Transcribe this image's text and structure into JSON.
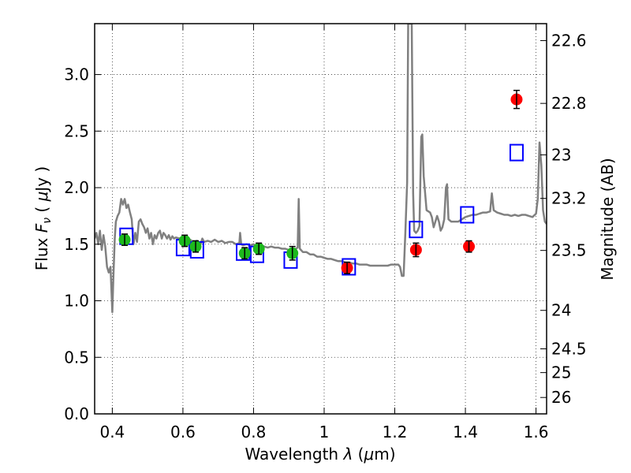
{
  "chart_data": {
    "type": "scatter",
    "xlabel_prefix": "Wavelength  ",
    "xlabel_symbol": "λ",
    "xlabel_unit_open": " (",
    "xlabel_unit_mu": "μ",
    "xlabel_unit_close": "m)",
    "ylabel_prefix": "Flux  ",
    "ylabel_symbol": "F",
    "ylabel_sub": "ν",
    "ylabel_unit_open": "  ( ",
    "ylabel_unit_mu": "μ",
    "ylabel_unit_close": "Jy )",
    "y2label": "Magnitude (AB)",
    "xlim": [
      0.35,
      1.63
    ],
    "ylim": [
      0.0,
      3.45
    ],
    "grid": true,
    "x_ticks": [
      0.4,
      0.6,
      0.8,
      1.0,
      1.2,
      1.4,
      1.6
    ],
    "x_tick_labels": [
      "0.4",
      "0.6",
      "0.8",
      "1",
      "1.2",
      "1.4",
      "1.6"
    ],
    "y_ticks": [
      0.0,
      0.5,
      1.0,
      1.5,
      2.0,
      2.5,
      3.0
    ],
    "y_tick_labels": [
      "0.0",
      "0.5",
      "1.0",
      "1.5",
      "2.0",
      "2.5",
      "3.0"
    ],
    "y2_ticks": [
      {
        "label": "22.6",
        "flux": 3.3
      },
      {
        "label": "22.8",
        "flux": 2.745
      },
      {
        "label": "23",
        "flux": 2.29
      },
      {
        "label": "23.2",
        "flux": 1.905
      },
      {
        "label": "23.5",
        "flux": 1.445
      },
      {
        "label": "24",
        "flux": 0.915
      },
      {
        "label": "24.5",
        "flux": 0.575
      },
      {
        "label": "25",
        "flux": 0.365
      },
      {
        "label": "26",
        "flux": 0.145
      }
    ],
    "colors": {
      "model": "#808080",
      "green": "#1db91d",
      "red": "#ff0000",
      "box": "#0000ff",
      "grid": "#a0a0a0"
    },
    "series": [
      {
        "kind": "points-green",
        "points": [
          {
            "x": 0.435,
            "y": 1.54,
            "err": 0.05
          },
          {
            "x": 0.605,
            "y": 1.53,
            "err": 0.05
          },
          {
            "x": 0.636,
            "y": 1.48,
            "err": 0.05
          },
          {
            "x": 0.775,
            "y": 1.42,
            "err": 0.05
          },
          {
            "x": 0.815,
            "y": 1.46,
            "err": 0.05
          },
          {
            "x": 0.91,
            "y": 1.42,
            "err": 0.06
          }
        ]
      },
      {
        "kind": "points-red",
        "points": [
          {
            "x": 1.065,
            "y": 1.29,
            "err": 0.05
          },
          {
            "x": 1.26,
            "y": 1.45,
            "err": 0.06
          },
          {
            "x": 1.41,
            "y": 1.48,
            "err": 0.05
          },
          {
            "x": 1.545,
            "y": 2.78,
            "err": 0.08
          }
        ]
      },
      {
        "kind": "model-boxes",
        "points": [
          {
            "x": 0.44,
            "y": 1.57
          },
          {
            "x": 0.6,
            "y": 1.47
          },
          {
            "x": 0.64,
            "y": 1.45
          },
          {
            "x": 0.77,
            "y": 1.43
          },
          {
            "x": 0.81,
            "y": 1.41
          },
          {
            "x": 0.905,
            "y": 1.36
          },
          {
            "x": 1.07,
            "y": 1.3
          },
          {
            "x": 1.26,
            "y": 1.63
          },
          {
            "x": 1.405,
            "y": 1.76
          },
          {
            "x": 1.545,
            "y": 2.31
          }
        ]
      },
      {
        "kind": "model-spectrum",
        "points": [
          [
            0.35,
            1.55
          ],
          [
            0.355,
            1.6
          ],
          [
            0.36,
            1.5
          ],
          [
            0.365,
            1.62
          ],
          [
            0.37,
            1.45
          ],
          [
            0.375,
            1.58
          ],
          [
            0.38,
            1.48
          ],
          [
            0.385,
            1.3
          ],
          [
            0.39,
            1.25
          ],
          [
            0.395,
            1.3
          ],
          [
            0.4,
            0.9
          ],
          [
            0.403,
            1.2
          ],
          [
            0.407,
            1.55
          ],
          [
            0.41,
            1.7
          ],
          [
            0.415,
            1.75
          ],
          [
            0.42,
            1.78
          ],
          [
            0.425,
            1.9
          ],
          [
            0.43,
            1.85
          ],
          [
            0.435,
            1.9
          ],
          [
            0.44,
            1.82
          ],
          [
            0.445,
            1.85
          ],
          [
            0.45,
            1.78
          ],
          [
            0.455,
            1.72
          ],
          [
            0.46,
            1.5
          ],
          [
            0.465,
            1.6
          ],
          [
            0.47,
            1.52
          ],
          [
            0.475,
            1.7
          ],
          [
            0.48,
            1.72
          ],
          [
            0.485,
            1.68
          ],
          [
            0.49,
            1.65
          ],
          [
            0.495,
            1.6
          ],
          [
            0.5,
            1.64
          ],
          [
            0.505,
            1.55
          ],
          [
            0.51,
            1.6
          ],
          [
            0.515,
            1.5
          ],
          [
            0.52,
            1.58
          ],
          [
            0.525,
            1.55
          ],
          [
            0.53,
            1.6
          ],
          [
            0.535,
            1.62
          ],
          [
            0.54,
            1.55
          ],
          [
            0.545,
            1.6
          ],
          [
            0.55,
            1.58
          ],
          [
            0.555,
            1.55
          ],
          [
            0.56,
            1.58
          ],
          [
            0.565,
            1.54
          ],
          [
            0.57,
            1.57
          ],
          [
            0.575,
            1.55
          ],
          [
            0.58,
            1.56
          ],
          [
            0.59,
            1.55
          ],
          [
            0.6,
            1.56
          ],
          [
            0.61,
            1.55
          ],
          [
            0.62,
            1.54
          ],
          [
            0.63,
            1.52
          ],
          [
            0.64,
            1.53
          ],
          [
            0.65,
            1.5
          ],
          [
            0.655,
            1.55
          ],
          [
            0.66,
            1.52
          ],
          [
            0.67,
            1.53
          ],
          [
            0.68,
            1.52
          ],
          [
            0.69,
            1.54
          ],
          [
            0.7,
            1.52
          ],
          [
            0.71,
            1.53
          ],
          [
            0.72,
            1.51
          ],
          [
            0.73,
            1.52
          ],
          [
            0.74,
            1.52
          ],
          [
            0.75,
            1.5
          ],
          [
            0.76,
            1.51
          ],
          [
            0.762,
            1.6
          ],
          [
            0.765,
            1.5
          ],
          [
            0.77,
            1.49
          ],
          [
            0.78,
            1.5
          ],
          [
            0.79,
            1.49
          ],
          [
            0.8,
            1.5
          ],
          [
            0.81,
            1.48
          ],
          [
            0.82,
            1.49
          ],
          [
            0.83,
            1.48
          ],
          [
            0.84,
            1.47
          ],
          [
            0.85,
            1.48
          ],
          [
            0.86,
            1.47
          ],
          [
            0.87,
            1.47
          ],
          [
            0.88,
            1.46
          ],
          [
            0.89,
            1.46
          ],
          [
            0.9,
            1.45
          ],
          [
            0.91,
            1.44
          ],
          [
            0.92,
            1.46
          ],
          [
            0.925,
            1.47
          ],
          [
            0.928,
            1.9
          ],
          [
            0.931,
            1.46
          ],
          [
            0.94,
            1.43
          ],
          [
            0.95,
            1.43
          ],
          [
            0.96,
            1.41
          ],
          [
            0.97,
            1.41
          ],
          [
            0.98,
            1.39
          ],
          [
            0.99,
            1.39
          ],
          [
            1.0,
            1.38
          ],
          [
            1.01,
            1.37
          ],
          [
            1.02,
            1.37
          ],
          [
            1.03,
            1.36
          ],
          [
            1.04,
            1.35
          ],
          [
            1.05,
            1.35
          ],
          [
            1.06,
            1.34
          ],
          [
            1.07,
            1.34
          ],
          [
            1.08,
            1.33
          ],
          [
            1.09,
            1.33
          ],
          [
            1.1,
            1.32
          ],
          [
            1.11,
            1.32
          ],
          [
            1.12,
            1.32
          ],
          [
            1.13,
            1.31
          ],
          [
            1.14,
            1.31
          ],
          [
            1.15,
            1.31
          ],
          [
            1.16,
            1.31
          ],
          [
            1.17,
            1.31
          ],
          [
            1.18,
            1.31
          ],
          [
            1.19,
            1.32
          ],
          [
            1.2,
            1.32
          ],
          [
            1.21,
            1.32
          ],
          [
            1.215,
            1.3
          ],
          [
            1.22,
            1.22
          ],
          [
            1.225,
            1.22
          ],
          [
            1.23,
            1.6
          ],
          [
            1.235,
            2.05
          ],
          [
            1.238,
            3.45
          ],
          [
            1.248,
            3.45
          ],
          [
            1.252,
            1.95
          ],
          [
            1.255,
            1.62
          ],
          [
            1.26,
            1.6
          ],
          [
            1.265,
            1.62
          ],
          [
            1.27,
            1.66
          ],
          [
            1.275,
            2.45
          ],
          [
            1.278,
            2.47
          ],
          [
            1.282,
            2.1
          ],
          [
            1.29,
            1.8
          ],
          [
            1.3,
            1.78
          ],
          [
            1.305,
            1.74
          ],
          [
            1.31,
            1.65
          ],
          [
            1.315,
            1.7
          ],
          [
            1.32,
            1.75
          ],
          [
            1.325,
            1.7
          ],
          [
            1.33,
            1.62
          ],
          [
            1.335,
            1.65
          ],
          [
            1.34,
            1.72
          ],
          [
            1.345,
            2.0
          ],
          [
            1.348,
            2.03
          ],
          [
            1.352,
            1.72
          ],
          [
            1.36,
            1.7
          ],
          [
            1.37,
            1.7
          ],
          [
            1.38,
            1.7
          ],
          [
            1.39,
            1.72
          ],
          [
            1.4,
            1.74
          ],
          [
            1.41,
            1.75
          ],
          [
            1.42,
            1.76
          ],
          [
            1.43,
            1.76
          ],
          [
            1.44,
            1.77
          ],
          [
            1.45,
            1.78
          ],
          [
            1.46,
            1.78
          ],
          [
            1.47,
            1.79
          ],
          [
            1.475,
            1.95
          ],
          [
            1.48,
            1.8
          ],
          [
            1.49,
            1.78
          ],
          [
            1.5,
            1.77
          ],
          [
            1.51,
            1.76
          ],
          [
            1.52,
            1.76
          ],
          [
            1.53,
            1.75
          ],
          [
            1.54,
            1.76
          ],
          [
            1.55,
            1.75
          ],
          [
            1.56,
            1.76
          ],
          [
            1.57,
            1.76
          ],
          [
            1.58,
            1.75
          ],
          [
            1.59,
            1.74
          ],
          [
            1.6,
            1.77
          ],
          [
            1.605,
            1.9
          ],
          [
            1.61,
            2.4
          ],
          [
            1.615,
            2.2
          ],
          [
            1.62,
            1.8
          ],
          [
            1.625,
            1.7
          ],
          [
            1.63,
            1.68
          ]
        ]
      }
    ]
  }
}
